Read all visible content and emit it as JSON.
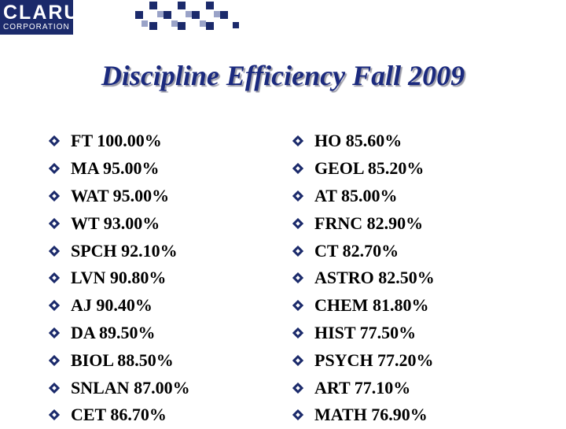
{
  "header": {
    "logo_name": "CLARUS",
    "logo_sub": "CORPORATION"
  },
  "slide": {
    "title": "Discipline Efficiency Fall 2009"
  },
  "left_list": [
    "FT 100.00%",
    "MA 95.00%",
    "WAT 95.00%",
    "WT 93.00%",
    "SPCH 92.10%",
    "LVN 90.80%",
    "AJ 90.40%",
    "DA 89.50%",
    "BIOL 88.50%",
    "SNLAN 87.00%",
    "CET 86.70%"
  ],
  "right_list": [
    "HO 85.60%",
    "GEOL 85.20%",
    "AT 85.00%",
    "FRNC 82.90%",
    "CT 82.70%",
    "ASTRO 82.50%",
    "CHEM 81.80%",
    "HIST 77.50%",
    "PSYCH 77.20%",
    "ART 77.10%",
    "MATH 76.90%"
  ],
  "colors": {
    "brand": "#1b2a6b",
    "title": "#1b2a7e",
    "bullet": "#1b2a6b"
  },
  "icons": {
    "bullet": "diamond-bullet-icon"
  }
}
